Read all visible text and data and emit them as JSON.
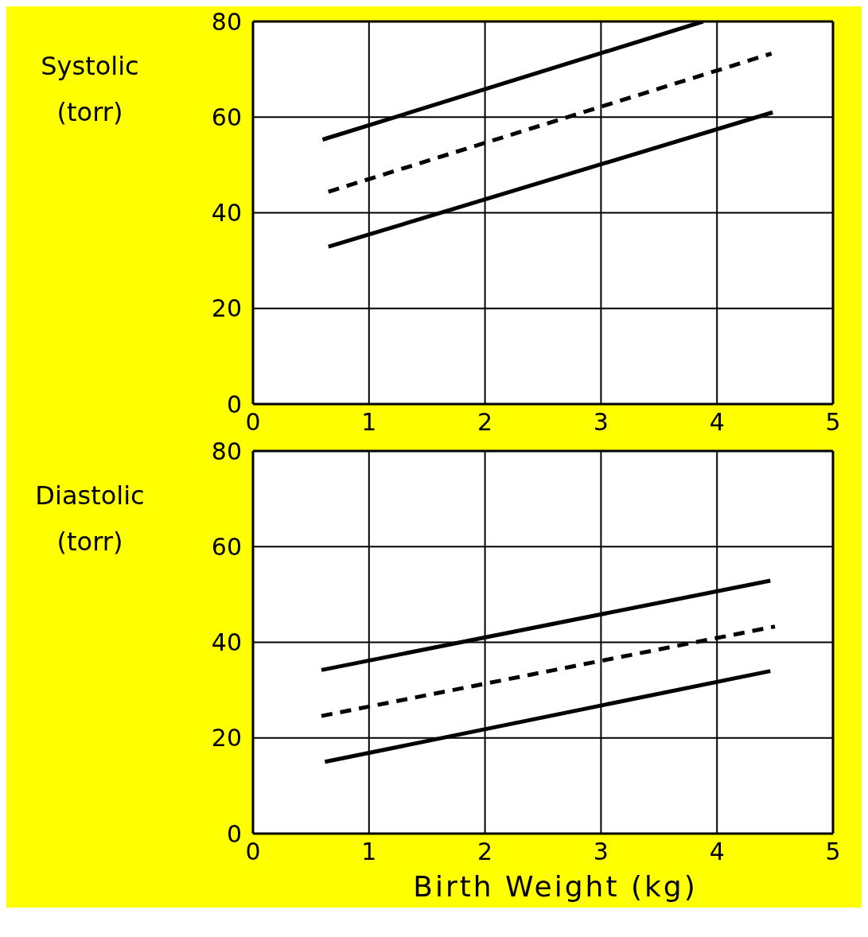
{
  "chart_data": [
    {
      "type": "line",
      "ylabel": "Systolic (torr)",
      "xlim": [
        0,
        5
      ],
      "xticks": [
        0,
        1,
        2,
        3,
        4,
        5
      ],
      "ylim": [
        0,
        80
      ],
      "yticks": [
        0,
        20,
        40,
        60,
        80
      ],
      "grid": true,
      "legend": false,
      "marker": "none",
      "series": [
        {
          "color": "#000000",
          "line_style": "solid",
          "x": [
            0.6,
            3.88
          ],
          "values": [
            55.3,
            80
          ]
        },
        {
          "color": "#000000",
          "line_style": "dashed",
          "x": [
            0.65,
            4.47
          ],
          "values": [
            44.4,
            73.3
          ]
        },
        {
          "color": "#000000",
          "line_style": "solid",
          "x": [
            0.65,
            4.48
          ],
          "values": [
            32.9,
            61
          ]
        }
      ]
    },
    {
      "type": "line",
      "ylabel": "Diastolic (torr)",
      "xlabel": "Birth Weight (kg)",
      "xlim": [
        0,
        5
      ],
      "xticks": [
        0,
        1,
        2,
        3,
        4,
        5
      ],
      "ylim": [
        0,
        80
      ],
      "yticks": [
        0,
        20,
        40,
        60,
        80
      ],
      "grid": true,
      "legend": false,
      "marker": "none",
      "series": [
        {
          "color": "#000000",
          "line_style": "solid",
          "x": [
            0.59,
            4.46
          ],
          "values": [
            34.2,
            52.9
          ]
        },
        {
          "color": "#000000",
          "line_style": "dashed",
          "x": [
            0.59,
            4.5
          ],
          "values": [
            24.6,
            43.3
          ]
        },
        {
          "color": "#000000",
          "line_style": "solid",
          "x": [
            0.62,
            4.46
          ],
          "values": [
            15,
            34
          ]
        }
      ]
    }
  ]
}
